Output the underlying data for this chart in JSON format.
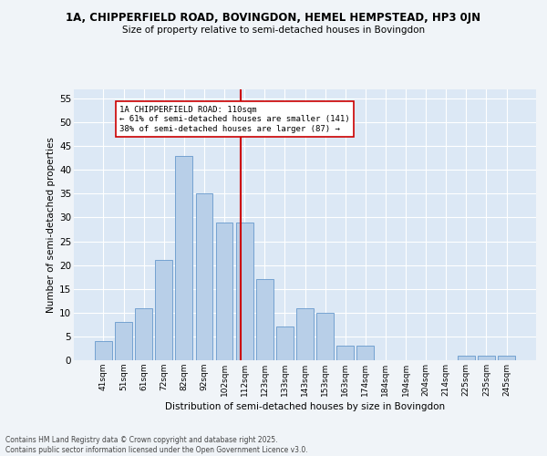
{
  "title1": "1A, CHIPPERFIELD ROAD, BOVINGDON, HEMEL HEMPSTEAD, HP3 0JN",
  "title2": "Size of property relative to semi-detached houses in Bovingdon",
  "xlabel": "Distribution of semi-detached houses by size in Bovingdon",
  "ylabel": "Number of semi-detached properties",
  "bar_labels": [
    "41sqm",
    "51sqm",
    "61sqm",
    "72sqm",
    "82sqm",
    "92sqm",
    "102sqm",
    "112sqm",
    "123sqm",
    "133sqm",
    "143sqm",
    "153sqm",
    "163sqm",
    "174sqm",
    "184sqm",
    "194sqm",
    "204sqm",
    "214sqm",
    "225sqm",
    "235sqm",
    "245sqm"
  ],
  "bar_values": [
    4,
    8,
    11,
    21,
    43,
    35,
    29,
    29,
    17,
    7,
    11,
    10,
    3,
    3,
    0,
    0,
    0,
    0,
    1,
    1,
    1
  ],
  "bar_color": "#b8cfe8",
  "bar_edge_color": "#6699cc",
  "vline_color": "#cc0000",
  "annotation_title": "1A CHIPPERFIELD ROAD: 110sqm",
  "annotation_line1": "← 61% of semi-detached houses are smaller (141)",
  "annotation_line2": "38% of semi-detached houses are larger (87) →",
  "annotation_box_color": "#ffffff",
  "annotation_box_edge": "#cc0000",
  "ylim": [
    0,
    57
  ],
  "yticks": [
    0,
    5,
    10,
    15,
    20,
    25,
    30,
    35,
    40,
    45,
    50,
    55
  ],
  "bg_color": "#dce8f5",
  "fig_bg_color": "#f0f4f8",
  "footer": "Contains HM Land Registry data © Crown copyright and database right 2025.\nContains public sector information licensed under the Open Government Licence v3.0."
}
